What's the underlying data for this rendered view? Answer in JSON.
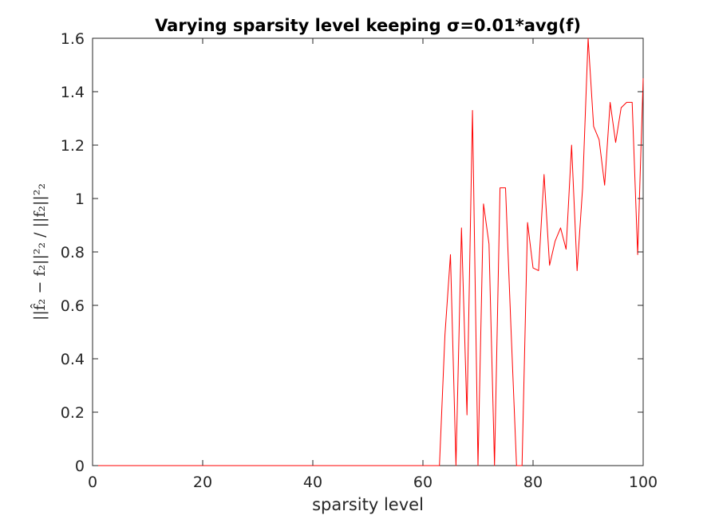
{
  "chart_data": {
    "type": "line",
    "title": "Varying sparsity level keeping σ=0.01*avg(f)",
    "xlabel": "sparsity level",
    "ylabel": "||f̂₂ − f₂||²₂ / ||f₂||²₂",
    "xlim": [
      0,
      100
    ],
    "ylim": [
      0,
      1.6
    ],
    "xticks": [
      "0",
      "20",
      "40",
      "60",
      "80",
      "100"
    ],
    "yticks": [
      "0",
      "0.2",
      "0.4",
      "0.6",
      "0.8",
      "1",
      "1.2",
      "1.4",
      "1.6"
    ],
    "grid": false,
    "line_color": "#ff0000",
    "series": [
      {
        "x": [
          0,
          1,
          2,
          3,
          4,
          5,
          6,
          7,
          8,
          9,
          10,
          11,
          12,
          13,
          14,
          15,
          16,
          17,
          18,
          19,
          20,
          21,
          22,
          23,
          24,
          25,
          26,
          27,
          28,
          29,
          30,
          31,
          32,
          33,
          34,
          35,
          36,
          37,
          38,
          39,
          40,
          41,
          42,
          43,
          44,
          45,
          46,
          47,
          48,
          49,
          50,
          51,
          52,
          53,
          54,
          55,
          56,
          57,
          58,
          59,
          60,
          61,
          62,
          63,
          64,
          65,
          66,
          67,
          68,
          69,
          70,
          71,
          72,
          73,
          74,
          75,
          76,
          77,
          78,
          79,
          80,
          81,
          82,
          83,
          84,
          85,
          86,
          87,
          88,
          89,
          90,
          91,
          92,
          93,
          94,
          95,
          96,
          97,
          98,
          99,
          100
        ],
        "values": [
          0,
          0,
          0,
          0,
          0,
          0,
          0,
          0,
          0,
          0,
          0,
          0,
          0,
          0,
          0,
          0,
          0,
          0,
          0,
          0,
          0,
          0,
          0,
          0,
          0,
          0,
          0,
          0,
          0,
          0,
          0,
          0,
          0,
          0,
          0,
          0,
          0,
          0,
          0,
          0,
          0,
          0,
          0,
          0,
          0,
          0,
          0,
          0,
          0,
          0,
          0,
          0,
          0,
          0,
          0,
          0,
          0,
          0,
          0,
          0,
          0,
          0,
          0,
          0,
          0.49,
          0.79,
          0,
          0.89,
          0.19,
          1.33,
          0,
          0.98,
          0.83,
          0,
          1.04,
          1.04,
          0.51,
          0,
          0,
          0.91,
          0.74,
          0.73,
          1.09,
          0.75,
          0.84,
          0.89,
          0.81,
          1.2,
          0.73,
          1.04,
          1.6,
          1.27,
          1.22,
          1.05,
          1.36,
          1.21,
          1.34,
          1.36,
          1.36,
          0.79,
          1.45
        ]
      }
    ]
  }
}
